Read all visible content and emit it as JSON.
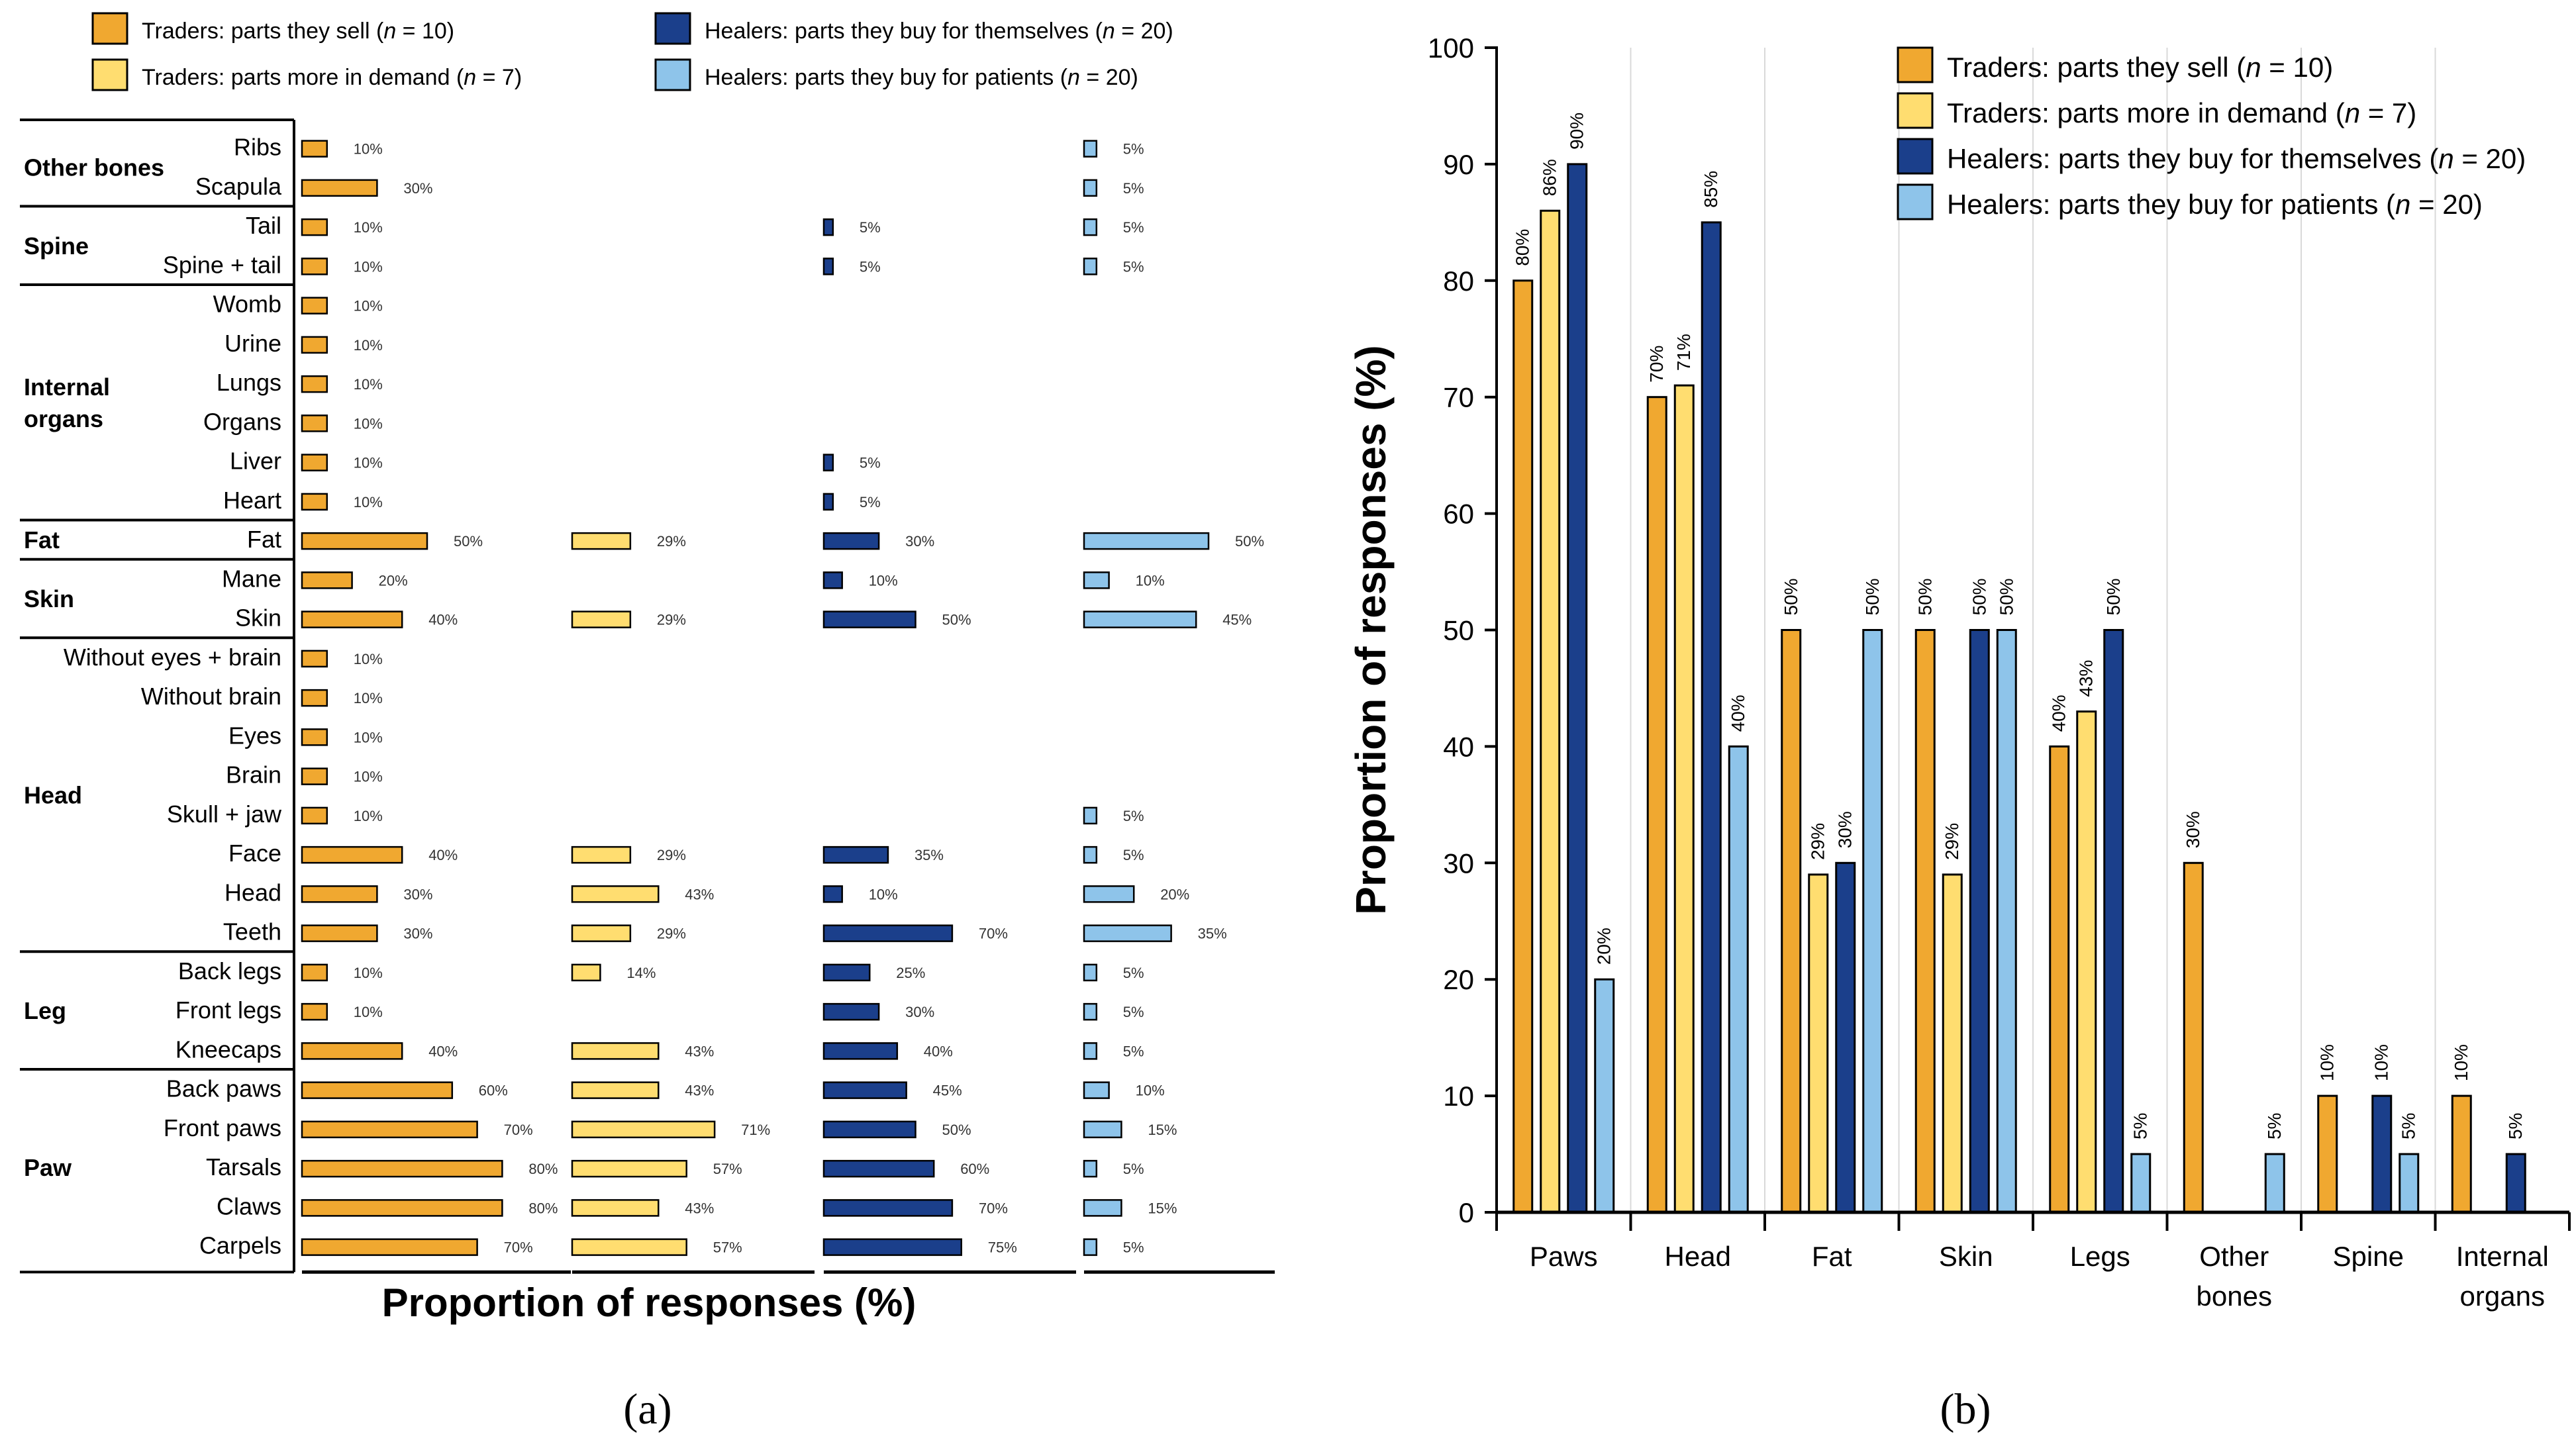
{
  "colors": {
    "trader_sell": "#F0A830",
    "trader_demand": "#FFDD70",
    "healer_self": "#1B3F8B",
    "healer_patients": "#8EC4EA",
    "axis": "#000000",
    "grid": "#d9d9d9"
  },
  "chart_data": [
    {
      "type": "bar",
      "orientation": "horizontal",
      "panel_label": "(a)",
      "xlabel": "Proportion of responses (%)",
      "legend": [
        {
          "key": "trader_sell",
          "label": "Traders: parts they sell (",
          "n_label": "n",
          "suffix": " = 10)"
        },
        {
          "key": "trader_demand",
          "label": "Traders: parts more in demand (",
          "n_label": "n",
          "suffix": " = 7)"
        },
        {
          "key": "healer_self",
          "label": "Healers: parts they buy for themselves (",
          "n_label": "n",
          "suffix": " = 20)"
        },
        {
          "key": "healer_patients",
          "label": "Healers: parts they buy for patients (",
          "n_label": "n",
          "suffix": " = 20)"
        }
      ],
      "groups": [
        {
          "name": "Other bones",
          "name_lines": [
            "Other bones"
          ],
          "rows": [
            {
              "label": "Ribs",
              "values": [
                10,
                null,
                null,
                5
              ]
            },
            {
              "label": "Scapula",
              "values": [
                30,
                null,
                null,
                5
              ]
            }
          ]
        },
        {
          "name": "Spine",
          "name_lines": [
            "Spine"
          ],
          "rows": [
            {
              "label": "Tail",
              "values": [
                10,
                null,
                5,
                5
              ]
            },
            {
              "label": "Spine + tail",
              "values": [
                10,
                null,
                5,
                5
              ]
            }
          ]
        },
        {
          "name": "Internal organs",
          "name_lines": [
            "Internal",
            "organs"
          ],
          "rows": [
            {
              "label": "Womb",
              "values": [
                10,
                null,
                null,
                null
              ]
            },
            {
              "label": "Urine",
              "values": [
                10,
                null,
                null,
                null
              ]
            },
            {
              "label": "Lungs",
              "values": [
                10,
                null,
                null,
                null
              ]
            },
            {
              "label": "Organs",
              "values": [
                10,
                null,
                null,
                null
              ]
            },
            {
              "label": "Liver",
              "values": [
                10,
                null,
                5,
                null
              ]
            },
            {
              "label": "Heart",
              "values": [
                10,
                null,
                5,
                null
              ]
            }
          ]
        },
        {
          "name": "Fat",
          "name_lines": [
            "Fat"
          ],
          "rows": [
            {
              "label": "Fat",
              "values": [
                50,
                29,
                30,
                50
              ]
            }
          ]
        },
        {
          "name": "Skin",
          "name_lines": [
            "Skin"
          ],
          "rows": [
            {
              "label": "Mane",
              "values": [
                20,
                null,
                10,
                10
              ]
            },
            {
              "label": "Skin",
              "values": [
                40,
                29,
                50,
                45
              ]
            }
          ]
        },
        {
          "name": "Head",
          "name_lines": [
            "Head"
          ],
          "rows": [
            {
              "label": "Without eyes + brain",
              "values": [
                10,
                null,
                null,
                null
              ]
            },
            {
              "label": "Without brain",
              "values": [
                10,
                null,
                null,
                null
              ]
            },
            {
              "label": "Eyes",
              "values": [
                10,
                null,
                null,
                null
              ]
            },
            {
              "label": "Brain",
              "values": [
                10,
                null,
                null,
                null
              ]
            },
            {
              "label": "Skull + jaw",
              "values": [
                10,
                null,
                null,
                5
              ]
            },
            {
              "label": "Face",
              "values": [
                40,
                29,
                35,
                5
              ]
            },
            {
              "label": "Head",
              "values": [
                30,
                43,
                10,
                20
              ]
            },
            {
              "label": "Teeth",
              "values": [
                30,
                29,
                70,
                35
              ]
            }
          ]
        },
        {
          "name": "Leg",
          "name_lines": [
            "Leg"
          ],
          "rows": [
            {
              "label": "Back legs",
              "values": [
                10,
                14,
                25,
                5
              ]
            },
            {
              "label": "Front legs",
              "values": [
                10,
                null,
                30,
                5
              ]
            },
            {
              "label": "Kneecaps",
              "values": [
                40,
                43,
                40,
                5
              ]
            }
          ]
        },
        {
          "name": "Paw",
          "name_lines": [
            "Paw"
          ],
          "rows": [
            {
              "label": "Back paws",
              "values": [
                60,
                43,
                45,
                10
              ]
            },
            {
              "label": "Front paws",
              "values": [
                70,
                71,
                50,
                15
              ]
            },
            {
              "label": "Tarsals",
              "values": [
                80,
                57,
                60,
                5
              ]
            },
            {
              "label": "Claws",
              "values": [
                80,
                43,
                70,
                15
              ]
            },
            {
              "label": "Carpels",
              "values": [
                70,
                57,
                75,
                5
              ]
            }
          ]
        }
      ]
    },
    {
      "type": "bar",
      "orientation": "vertical",
      "panel_label": "(b)",
      "ylabel": "Proportion of responses (%)",
      "ylim": [
        0,
        100
      ],
      "yticks": [
        0,
        10,
        20,
        30,
        40,
        50,
        60,
        70,
        80,
        90,
        100
      ],
      "legend": [
        {
          "key": "trader_sell",
          "label": "Traders: parts they sell (",
          "n_label": "n",
          "suffix": " = 10)"
        },
        {
          "key": "trader_demand",
          "label": "Traders: parts more in demand (",
          "n_label": "n",
          "suffix": " = 7)"
        },
        {
          "key": "healer_self",
          "label": "Healers: parts they buy for themselves (",
          "n_label": "n",
          "suffix": " = 20)"
        },
        {
          "key": "healer_patients",
          "label": "Healers: parts they buy for patients (",
          "n_label": "n",
          "suffix": " = 20)"
        }
      ],
      "categories": [
        "Paws",
        "Head",
        "Fat",
        "Skin",
        "Legs",
        "Other bones",
        "Spine",
        "Internal organs"
      ],
      "category_lines": [
        [
          "Paws"
        ],
        [
          "Head"
        ],
        [
          "Fat"
        ],
        [
          "Skin"
        ],
        [
          "Legs"
        ],
        [
          "Other",
          "bones"
        ],
        [
          "Spine"
        ],
        [
          "Internal",
          "organs"
        ]
      ],
      "series": [
        {
          "name": "Traders: parts they sell (n = 10)",
          "key": "trader_sell",
          "values": [
            80,
            70,
            50,
            50,
            40,
            30,
            10,
            10
          ],
          "labels": [
            "80%",
            "70%",
            "50%",
            "50%",
            "40%",
            "30%",
            "10%",
            "10%"
          ]
        },
        {
          "name": "Traders: parts more in demand (n = 7)",
          "key": "trader_demand",
          "values": [
            86,
            71,
            29,
            29,
            43,
            null,
            null,
            null
          ],
          "labels": [
            "86%",
            "71%",
            "29%",
            "29%",
            "43%",
            null,
            null,
            null
          ]
        },
        {
          "name": "Healers: parts they buy for themselves (n = 20)",
          "key": "healer_self",
          "values": [
            90,
            85,
            30,
            50,
            50,
            null,
            10,
            5
          ],
          "labels": [
            "90%",
            "85%",
            "30%",
            "50%",
            "50%",
            null,
            "10%",
            "5%"
          ]
        },
        {
          "name": "Healers: parts they buy for patients (n = 20)",
          "key": "healer_patients",
          "values": [
            20,
            40,
            50,
            50,
            5,
            5,
            5,
            null
          ],
          "labels": [
            "20%",
            "40%",
            "50%",
            "50%",
            "5%",
            "5%",
            "5%",
            null
          ]
        }
      ]
    }
  ]
}
